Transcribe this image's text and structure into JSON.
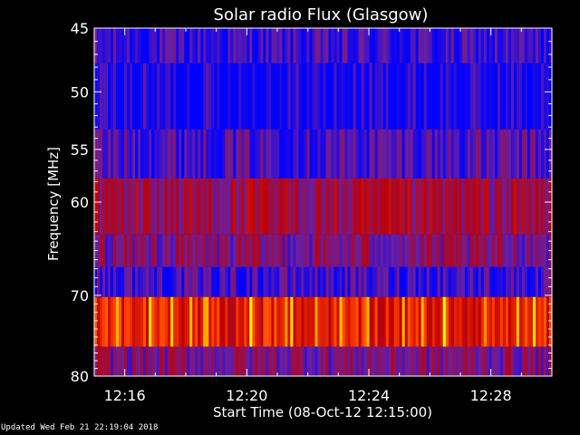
{
  "chart_data": {
    "type": "heatmap",
    "title": "Solar radio Flux (Glasgow)",
    "xlabel": "Start Time (08-Oct-12 12:15:00)",
    "ylabel": "Frequency [MHz]",
    "x_range_minutes": [
      12.25,
      12.5
    ],
    "x_start": "12:15:00",
    "x_end": "12:30:30",
    "x_ticks": [
      "12:16",
      "12:20",
      "12:24",
      "12:28"
    ],
    "x_tick_minutes": [
      16,
      20,
      24,
      28
    ],
    "ylim": [
      80,
      45
    ],
    "y_ticks": [
      45,
      50,
      55,
      60,
      70,
      80
    ],
    "y_scale": "log",
    "colormap": [
      "#0000ff",
      "#6a1fa0",
      "#c00000",
      "#ff4000",
      "#ffff00"
    ],
    "bands": [
      {
        "f_top": 45.0,
        "f_bottom": 47.7,
        "level": 0.12
      },
      {
        "f_top": 47.7,
        "f_bottom": 53.2,
        "level": 0.05
      },
      {
        "f_top": 53.2,
        "f_bottom": 57.7,
        "level": 0.18
      },
      {
        "f_top": 57.7,
        "f_bottom": 63.3,
        "level": 0.38
      },
      {
        "f_top": 63.3,
        "f_bottom": 66.8,
        "level": 0.3
      },
      {
        "f_top": 66.8,
        "f_bottom": 70.2,
        "level": 0.15
      },
      {
        "f_top": 70.2,
        "f_bottom": 76.2,
        "level": 0.62
      },
      {
        "f_top": 76.2,
        "f_bottom": 80.0,
        "level": 0.3
      }
    ]
  },
  "footer": {
    "updated": "Updated Wed Feb 21 22:19:04 2018"
  },
  "colors": {
    "background": "#000000",
    "axis": "#ffffff"
  }
}
